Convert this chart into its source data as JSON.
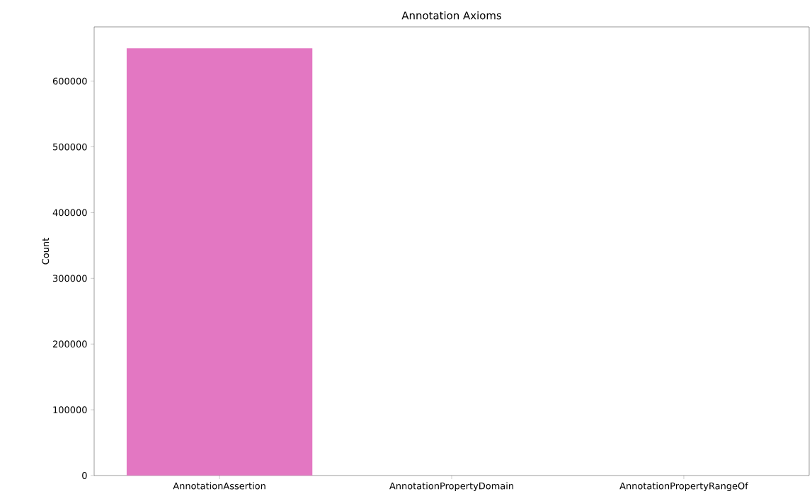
{
  "chart_data": {
    "type": "bar",
    "title": "Annotation Axioms",
    "ylabel": "Count",
    "categories": [
      "AnnotationAssertion",
      "AnnotationPropertyDomain",
      "AnnotationPropertyRangeOf"
    ],
    "values": [
      650000,
      0,
      0
    ],
    "color": "#e377c2",
    "ylim": [
      0,
      682500
    ],
    "yticks": [
      0,
      100000,
      200000,
      300000,
      400000,
      500000,
      600000
    ]
  }
}
